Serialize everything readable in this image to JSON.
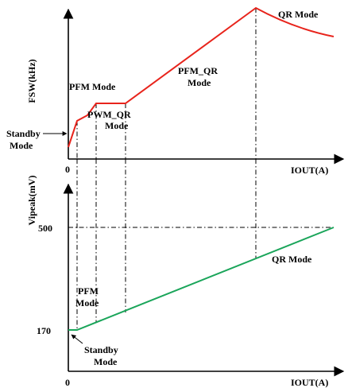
{
  "top_chart": {
    "y_label": "FSW(kHz)",
    "x_label": "IOUT(A)",
    "origin_label": "0",
    "modes": {
      "standby_line1": "Standby",
      "standby_line2": "Mode",
      "pfm": "PFM Mode",
      "pwm_qr_line1": "PWM_QR",
      "pwm_qr_line2": "Mode",
      "pfm_qr_line1": "PFM_QR",
      "pfm_qr_line2": "Mode",
      "qr": "QR Mode"
    },
    "curve_color": "#e8241c"
  },
  "bottom_chart": {
    "y_label": "Vipeak(mV)",
    "x_label": "IOUT(A)",
    "origin_label": "0",
    "tick_500": "500",
    "tick_170": "170",
    "modes": {
      "qr": "QR Mode",
      "pfm_line1": "PFM",
      "pfm_line2": "Mode",
      "standby_line1": "Standby",
      "standby_line2": "Mode"
    },
    "curve_color": "#1aa55a"
  }
}
